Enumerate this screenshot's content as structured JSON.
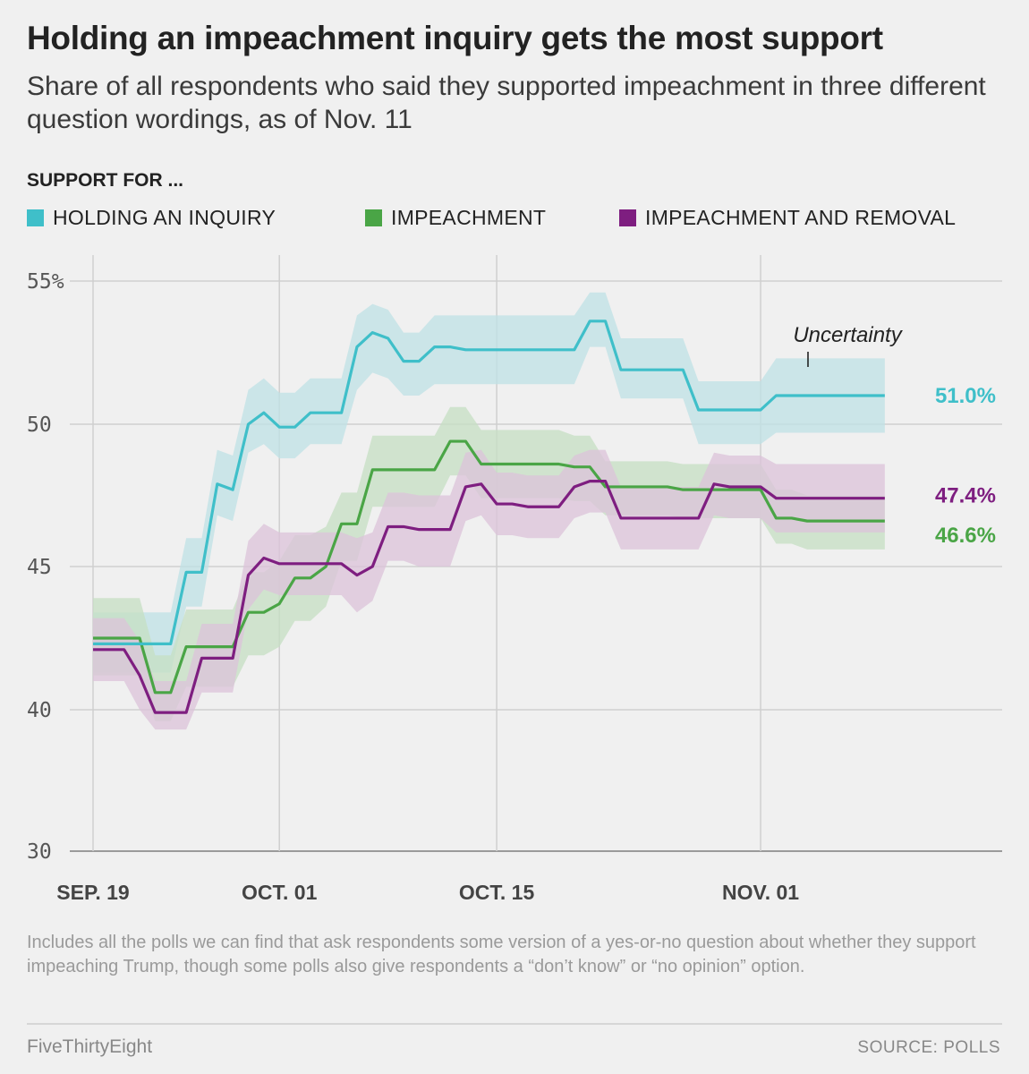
{
  "header": {
    "title": "Holding an impeachment inquiry gets the most support",
    "subtitle": "Share of all respondents who said they supported impeachment in three different question wordings, as of Nov. 11"
  },
  "legend": {
    "title": "SUPPORT FOR ...",
    "items": [
      {
        "label": "HOLDING AN INQUIRY",
        "color": "#3fbfc9"
      },
      {
        "label": "IMPEACHMENT",
        "color": "#4aa546"
      },
      {
        "label": "IMPEACHMENT AND REMOVAL",
        "color": "#7e1e80"
      }
    ]
  },
  "chart_data": {
    "type": "line",
    "title": "Holding an impeachment inquiry gets the most support",
    "xlabel": "",
    "ylabel": "",
    "x_start": "Sep. 19",
    "x_range": [
      0,
      51
    ],
    "ylim": [
      30,
      55
    ],
    "y_ticks": [
      {
        "value": 55,
        "label": "55%"
      },
      {
        "value": 50,
        "label": "50"
      },
      {
        "value": 45,
        "label": "45"
      },
      {
        "value": 40,
        "label": "40"
      },
      {
        "value": 30,
        "label": "30"
      }
    ],
    "x_ticks": [
      {
        "day": 0,
        "label": "SEP. 19"
      },
      {
        "day": 12,
        "label": "OCT. 01"
      },
      {
        "day": 26,
        "label": "OCT. 15"
      },
      {
        "day": 43,
        "label": "NOV. 01"
      }
    ],
    "x_gridlines": [
      12,
      26,
      43
    ],
    "annotation": {
      "text": "Uncertainty"
    },
    "series": [
      {
        "name": "HOLDING AN INQUIRY",
        "color": "#3fbfc9",
        "band_color": "#bfe2e6",
        "end_label": "51.0%",
        "x": [
          0,
          1,
          2,
          3,
          4,
          5,
          6,
          7,
          8,
          9,
          10,
          11,
          12,
          13,
          14,
          15,
          16,
          17,
          18,
          19,
          20,
          21,
          22,
          23,
          24,
          25,
          26,
          27,
          28,
          29,
          30,
          31,
          32,
          33,
          34,
          35,
          36,
          37,
          38,
          39,
          40,
          41,
          42,
          43,
          44,
          45,
          46,
          47,
          48,
          49,
          50,
          51
        ],
        "y": [
          42.3,
          42.3,
          42.3,
          42.3,
          42.3,
          42.3,
          44.8,
          44.8,
          47.9,
          47.7,
          50.0,
          50.4,
          49.9,
          49.9,
          50.4,
          50.4,
          50.4,
          52.7,
          53.2,
          53.0,
          52.2,
          52.2,
          52.7,
          52.7,
          52.6,
          52.6,
          52.6,
          52.6,
          52.6,
          52.6,
          52.6,
          52.6,
          53.6,
          53.6,
          51.9,
          51.9,
          51.9,
          51.9,
          51.9,
          50.5,
          50.5,
          50.5,
          50.5,
          50.5,
          51.0,
          51.0,
          51.0,
          51.0,
          51.0,
          51.0,
          51.0,
          51.0
        ],
        "lower": [
          41.3,
          41.3,
          41.3,
          41.3,
          41.3,
          41.3,
          43.6,
          43.6,
          46.8,
          46.6,
          49.0,
          49.3,
          48.8,
          48.8,
          49.3,
          49.3,
          49.3,
          51.2,
          51.8,
          51.6,
          51.0,
          51.0,
          51.4,
          51.4,
          51.4,
          51.4,
          51.4,
          51.4,
          51.4,
          51.4,
          51.4,
          51.4,
          52.7,
          52.7,
          50.9,
          50.9,
          50.9,
          50.9,
          50.9,
          49.3,
          49.3,
          49.3,
          49.3,
          49.3,
          49.7,
          49.7,
          49.7,
          49.7,
          49.7,
          49.7,
          49.7,
          49.7
        ],
        "upper": [
          43.4,
          43.4,
          43.4,
          43.4,
          43.4,
          43.4,
          46.0,
          46.0,
          49.1,
          48.9,
          51.2,
          51.6,
          51.1,
          51.1,
          51.6,
          51.6,
          51.6,
          53.8,
          54.2,
          54.0,
          53.2,
          53.2,
          53.8,
          53.8,
          53.8,
          53.8,
          53.8,
          53.8,
          53.8,
          53.8,
          53.8,
          53.8,
          54.6,
          54.6,
          53.0,
          53.0,
          53.0,
          53.0,
          53.0,
          51.5,
          51.5,
          51.5,
          51.5,
          51.5,
          52.3,
          52.3,
          52.3,
          52.3,
          52.3,
          52.3,
          52.3,
          52.3
        ]
      },
      {
        "name": "IMPEACHMENT",
        "color": "#4aa546",
        "band_color": "#c5dfc3",
        "end_label": "46.6%",
        "x": [
          0,
          1,
          2,
          3,
          4,
          5,
          6,
          7,
          8,
          9,
          10,
          11,
          12,
          13,
          14,
          15,
          16,
          17,
          18,
          19,
          20,
          21,
          22,
          23,
          24,
          25,
          26,
          27,
          28,
          29,
          30,
          31,
          32,
          33,
          34,
          35,
          36,
          37,
          38,
          39,
          40,
          41,
          42,
          43,
          44,
          45,
          46,
          47,
          48,
          49,
          50,
          51
        ],
        "y": [
          42.5,
          42.5,
          42.5,
          42.5,
          40.6,
          40.6,
          42.2,
          42.2,
          42.2,
          42.2,
          43.4,
          43.4,
          43.7,
          44.6,
          44.6,
          45.0,
          46.5,
          46.5,
          48.4,
          48.4,
          48.4,
          48.4,
          48.4,
          49.4,
          49.4,
          48.6,
          48.6,
          48.6,
          48.6,
          48.6,
          48.6,
          48.5,
          48.5,
          47.8,
          47.8,
          47.8,
          47.8,
          47.8,
          47.7,
          47.7,
          47.7,
          47.7,
          47.7,
          47.7,
          46.7,
          46.7,
          46.6,
          46.6,
          46.6,
          46.6,
          46.6,
          46.6
        ],
        "lower": [
          41.2,
          41.2,
          41.2,
          41.2,
          39.2,
          39.2,
          40.8,
          40.8,
          40.8,
          40.8,
          41.9,
          41.9,
          42.2,
          43.1,
          43.1,
          43.6,
          45.2,
          45.2,
          47.1,
          47.1,
          47.1,
          47.1,
          47.1,
          48.2,
          48.2,
          47.4,
          47.4,
          47.4,
          47.4,
          47.4,
          47.4,
          47.3,
          47.3,
          46.8,
          46.8,
          46.8,
          46.8,
          46.8,
          46.7,
          46.7,
          46.7,
          46.7,
          46.7,
          46.7,
          45.8,
          45.8,
          45.6,
          45.6,
          45.6,
          45.6,
          45.6,
          45.6
        ],
        "upper": [
          43.9,
          43.9,
          43.9,
          43.9,
          41.9,
          41.9,
          43.5,
          43.5,
          43.5,
          43.5,
          44.8,
          44.8,
          45.2,
          46.1,
          46.1,
          46.4,
          47.6,
          47.6,
          49.6,
          49.6,
          49.6,
          49.6,
          49.6,
          50.6,
          50.6,
          49.8,
          49.8,
          49.8,
          49.8,
          49.8,
          49.8,
          49.6,
          49.6,
          48.7,
          48.7,
          48.7,
          48.7,
          48.7,
          48.6,
          48.6,
          48.6,
          48.6,
          48.6,
          48.6,
          47.7,
          47.7,
          47.5,
          47.5,
          47.5,
          47.5,
          47.5,
          47.5
        ]
      },
      {
        "name": "IMPEACHMENT AND REMOVAL",
        "color": "#7e1e80",
        "band_color": "#dcc3da",
        "end_label": "47.4%",
        "x": [
          0,
          1,
          2,
          3,
          4,
          5,
          6,
          7,
          8,
          9,
          10,
          11,
          12,
          13,
          14,
          15,
          16,
          17,
          18,
          19,
          20,
          21,
          22,
          23,
          24,
          25,
          26,
          27,
          28,
          29,
          30,
          31,
          32,
          33,
          34,
          35,
          36,
          37,
          38,
          39,
          40,
          41,
          42,
          43,
          44,
          45,
          46,
          47,
          48,
          49,
          50,
          51
        ],
        "y": [
          42.1,
          42.1,
          42.1,
          41.2,
          39.8,
          39.8,
          39.8,
          41.8,
          41.8,
          41.8,
          44.7,
          45.3,
          45.1,
          45.1,
          45.1,
          45.1,
          45.1,
          44.7,
          45.0,
          46.4,
          46.4,
          46.3,
          46.3,
          46.3,
          47.8,
          47.9,
          47.2,
          47.2,
          47.1,
          47.1,
          47.1,
          47.8,
          48.0,
          48.0,
          46.7,
          46.7,
          46.7,
          46.7,
          46.7,
          46.7,
          47.9,
          47.8,
          47.8,
          47.8,
          47.4,
          47.4,
          47.4,
          47.4,
          47.4,
          47.4,
          47.4,
          47.4
        ],
        "lower": [
          41.0,
          41.0,
          41.0,
          40.0,
          38.6,
          38.6,
          38.6,
          40.6,
          40.6,
          40.6,
          43.5,
          44.2,
          44.0,
          44.0,
          44.0,
          44.0,
          44.0,
          43.4,
          43.8,
          45.2,
          45.2,
          45.0,
          45.0,
          45.0,
          46.6,
          46.8,
          46.1,
          46.1,
          46.0,
          46.0,
          46.0,
          46.7,
          46.9,
          46.9,
          45.6,
          45.6,
          45.6,
          45.6,
          45.6,
          45.6,
          46.8,
          46.7,
          46.7,
          46.7,
          46.2,
          46.2,
          46.2,
          46.2,
          46.2,
          46.2,
          46.2,
          46.2
        ],
        "upper": [
          43.2,
          43.2,
          43.2,
          42.4,
          41.0,
          41.0,
          41.0,
          43.0,
          43.0,
          43.0,
          45.9,
          46.5,
          46.2,
          46.2,
          46.2,
          46.2,
          46.2,
          46.0,
          46.2,
          47.6,
          47.6,
          47.5,
          47.5,
          47.5,
          49.0,
          49.1,
          48.3,
          48.3,
          48.2,
          48.2,
          48.2,
          48.9,
          49.1,
          49.1,
          47.8,
          47.8,
          47.8,
          47.8,
          47.8,
          47.8,
          49.0,
          48.9,
          48.9,
          48.9,
          48.6,
          48.6,
          48.6,
          48.6,
          48.6,
          48.6,
          48.6,
          48.6
        ]
      }
    ]
  },
  "note": "Includes all the polls we can find that ask respondents some version of a yes-or-no question about whether they support impeaching Trump, though some polls also give respondents a “don’t know” or “no opinion” option.",
  "footer": {
    "brand": "FiveThirtyEight",
    "source": "SOURCE: POLLS"
  }
}
